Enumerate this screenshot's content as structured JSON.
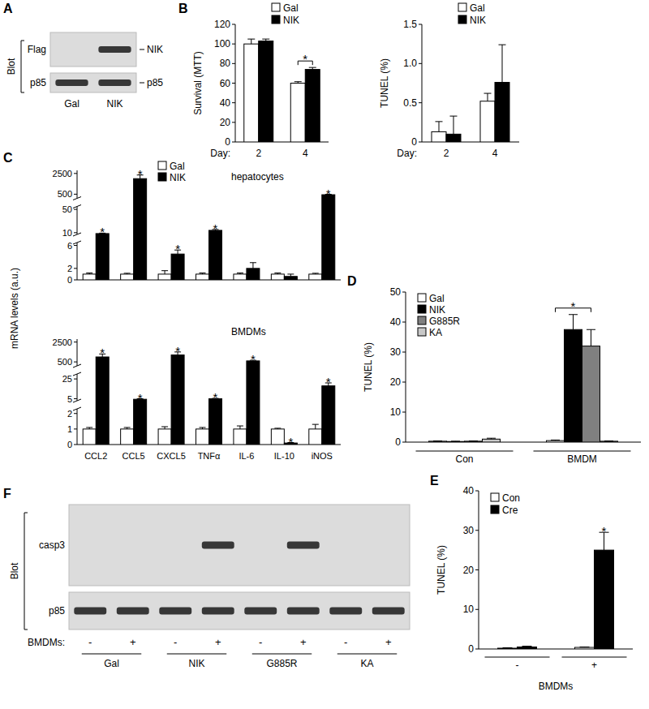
{
  "panel_labels": [
    "A",
    "B",
    "C",
    "D",
    "E",
    "F"
  ],
  "chart_data": [
    {
      "type": "bar",
      "y_label": "Survival (MTT)",
      "x_label": "Day:",
      "categories": [
        "2",
        "4"
      ],
      "ylim": [
        0,
        120
      ],
      "yticks": [
        0,
        20,
        40,
        60,
        80,
        100,
        120
      ],
      "legend": "top",
      "series": [
        {
          "name": "Gal",
          "color": "#ffffff",
          "values": [
            100,
            60
          ],
          "errors": [
            5,
            1.5
          ]
        },
        {
          "name": "NIK",
          "color": "#000000",
          "values": [
            103,
            74
          ],
          "errors": [
            2,
            2
          ]
        }
      ],
      "brackets": [
        {
          "text": "*",
          "category": 1,
          "from": 0,
          "to": 1
        }
      ]
    },
    {
      "type": "bar",
      "y_label": "TUNEL (%)",
      "x_label": "Day:",
      "categories": [
        "2",
        "4"
      ],
      "ylim": [
        0,
        1.5
      ],
      "yticks": [
        0,
        0.5,
        {
          "value": 1,
          "label": "1.0"
        },
        1.5
      ],
      "legend": "top",
      "series": [
        {
          "name": "Gal",
          "color": "#ffffff",
          "values": [
            0.13,
            0.52
          ],
          "errors": [
            0.13,
            0.1
          ]
        },
        {
          "name": "NIK",
          "color": "#000000",
          "values": [
            0.1,
            0.76
          ],
          "errors": [
            0.23,
            0.48
          ]
        }
      ]
    },
    {
      "type": "bar",
      "title": "hepatocytes",
      "y_label": "mRNA levels (a.u.)",
      "categories": [
        "CCL2",
        "CCL5",
        "CXCL5",
        "TNFα",
        "IL-6",
        "IL-10",
        "iNOS"
      ],
      "tick_labels": "y",
      "ylim": [
        0,
        2800
      ],
      "yticks": [
        0,
        2,
        6,
        10,
        50,
        500,
        2500
      ],
      "y_breaks": [
        [
          6.5,
          7
        ],
        [
          55,
          100
        ]
      ],
      "legend": "top",
      "series": [
        {
          "name": "Gal",
          "color": "#ffffff",
          "values": [
            1,
            1,
            1,
            1,
            1,
            1,
            1
          ],
          "errors": [
            0.2,
            0.15,
            0.6,
            0.2,
            0.2,
            0.2,
            0.15
          ]
        },
        {
          "name": "NIK",
          "color": "#000000",
          "values": [
            8.5,
            2000,
            4.5,
            14,
            2,
            0.6,
            450
          ],
          "errors": [
            0.8,
            350,
            0.7,
            1.5,
            1,
            0.4,
            40
          ],
          "significance": [
            "*",
            "*",
            "*",
            "*",
            null,
            null,
            "*"
          ]
        }
      ]
    },
    {
      "type": "bar",
      "title": "BMDMs",
      "categories": [
        "CCL2",
        "CCL5",
        "CXCL5",
        "TNFα",
        "IL-6",
        "IL-10",
        "iNOS"
      ],
      "ylim": [
        0,
        2800
      ],
      "yticks": [
        0,
        1,
        2,
        5,
        25,
        500,
        2500
      ],
      "y_breaks": [
        [
          2.3,
          3
        ],
        [
          30,
          100
        ]
      ],
      "series": [
        {
          "name": "Gal",
          "color": "#ffffff",
          "values": [
            1,
            1,
            1,
            1,
            1,
            1,
            1
          ],
          "errors": [
            0.1,
            0.1,
            0.15,
            0.1,
            0.2,
            0.05,
            0.3
          ]
        },
        {
          "name": "NIK",
          "color": "#000000",
          "values": [
            1000,
            4.5,
            1200,
            5,
            600,
            0.1,
            18
          ],
          "errors": [
            300,
            0.5,
            300,
            0.4,
            60,
            0.03,
            3
          ],
          "significance": [
            "*",
            "*",
            "*",
            "*",
            "*",
            "*",
            "*"
          ]
        }
      ]
    },
    {
      "type": "bar",
      "y_label": "TUNEL (%)",
      "categories": [
        "Con",
        "BMDM"
      ],
      "ylim": [
        0,
        50
      ],
      "yticks": [
        0,
        10,
        20,
        30,
        40,
        50
      ],
      "legend": "top-left",
      "series": [
        {
          "name": "Gal",
          "color": "#ffffff",
          "values": [
            0.3,
            0.5
          ],
          "errors": [
            0.1,
            0.2
          ]
        },
        {
          "name": "NIK",
          "color": "#000000",
          "values": [
            0.2,
            37.5
          ],
          "errors": [
            0.1,
            5
          ]
        },
        {
          "name": "G885R",
          "color": "#808080",
          "values": [
            0.3,
            32
          ],
          "errors": [
            0.1,
            5.5
          ]
        },
        {
          "name": "KA",
          "color": "#c8c8c8",
          "values": [
            1.0,
            0.3
          ],
          "errors": [
            0.3,
            0.1
          ]
        }
      ],
      "brackets": [
        {
          "text": "*",
          "category": 1,
          "from": 0,
          "to": 2
        }
      ]
    },
    {
      "type": "bar",
      "y_label": "TUNEL (%)",
      "x_label": "BMDMs",
      "categories": [
        "-",
        "+"
      ],
      "ylim": [
        0,
        40
      ],
      "yticks": [
        0,
        10,
        20,
        30,
        40
      ],
      "legend": "top-left",
      "series": [
        {
          "name": "Con",
          "color": "#ffffff",
          "values": [
            0.2,
            0.4
          ],
          "errors": [
            0.1,
            0.1
          ]
        },
        {
          "name": "Cre",
          "color": "#000000",
          "values": [
            0.5,
            25
          ],
          "errors": [
            0.2,
            4.5
          ],
          "significance": [
            null,
            "*"
          ]
        }
      ]
    }
  ],
  "blots": [
    {
      "label": "Blot",
      "rows": [
        "Flag",
        "p85"
      ],
      "markers": [
        "NIK",
        "p85"
      ],
      "lanes": [
        "Gal",
        "NIK"
      ],
      "bands": [
        [
          0,
          1
        ],
        [
          1,
          1
        ]
      ]
    },
    {
      "label": "Blot",
      "rows": [
        "casp3",
        "p85"
      ],
      "lane_title": "BMDMs:",
      "lanes": [
        "-",
        "+",
        "-",
        "+",
        "-",
        "+",
        "-",
        "+"
      ],
      "groups": [
        "Gal",
        "NIK",
        "G885R",
        "KA"
      ],
      "bands": [
        [
          0,
          0,
          0,
          1,
          0,
          1,
          0,
          0
        ],
        [
          1,
          1,
          1,
          1,
          1,
          1,
          1,
          1
        ]
      ]
    }
  ]
}
